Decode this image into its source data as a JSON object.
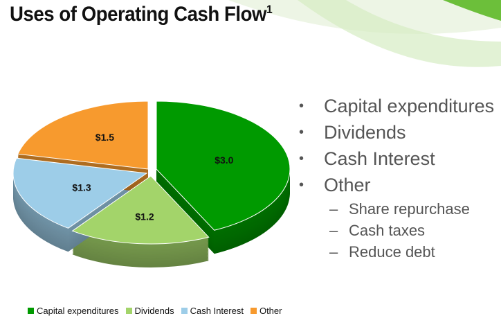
{
  "title": {
    "text": "Uses of Operating Cash Flow",
    "superscript": "1"
  },
  "bullets": [
    {
      "text": "Capital expenditures",
      "sub": []
    },
    {
      "text": "Dividends",
      "sub": []
    },
    {
      "text": "Cash Interest",
      "sub": []
    },
    {
      "text": "Other",
      "sub": [
        "Share repurchase",
        "Cash taxes",
        "Reduce debt"
      ]
    }
  ],
  "chart_data": {
    "type": "pie",
    "style": "3d-exploded",
    "categories": [
      "Capital expenditures",
      "Dividends",
      "Cash Interest",
      "Other"
    ],
    "values": [
      3.0,
      1.2,
      1.3,
      1.5
    ],
    "data_labels": [
      "$3.0",
      "$1.2",
      "$1.3",
      "$1.5"
    ],
    "colors": [
      "#009a00",
      "#a3d46a",
      "#9dcde8",
      "#f79a2e"
    ],
    "legend_position": "bottom",
    "start_angle": "12 o'clock, clockwise"
  }
}
